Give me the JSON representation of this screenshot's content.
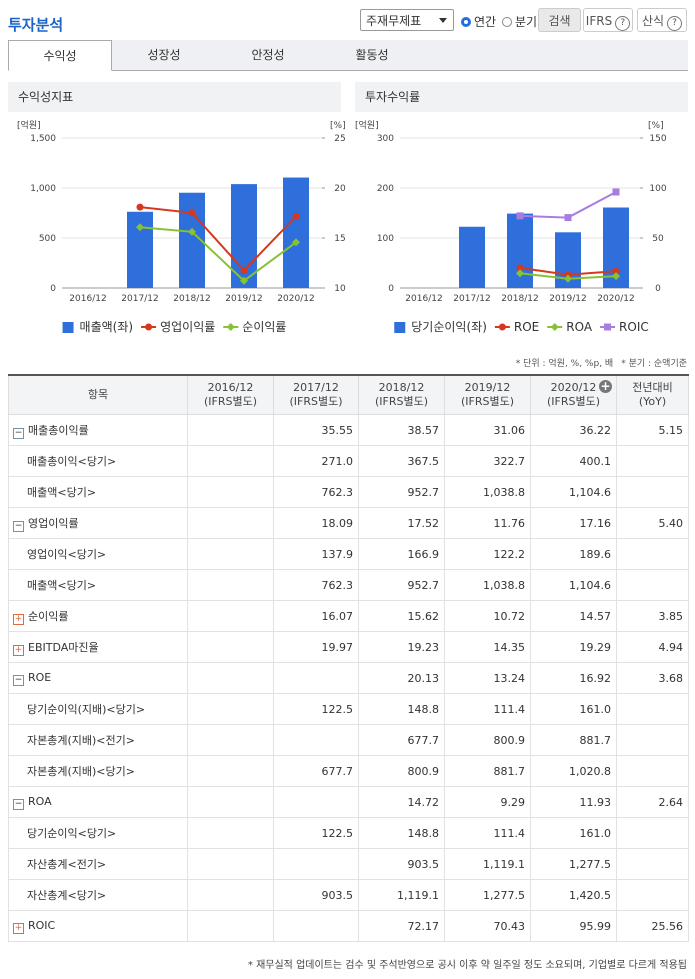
{
  "header": {
    "title": "투자분석",
    "select": "주재무제표",
    "radios": [
      "연간",
      "분기"
    ],
    "radio_selected": 0,
    "buttons": [
      "검색",
      "IFRS",
      "산식"
    ]
  },
  "tabs": {
    "items": [
      "수익성",
      "성장성",
      "안정성",
      "활동성"
    ],
    "active": 0
  },
  "chart_data": [
    {
      "type": "combo",
      "title": "수익성지표",
      "ylabel": "[억원]",
      "y2label": "[%]",
      "categories": [
        "2016/12",
        "2017/12",
        "2018/12",
        "2019/12",
        "2020/12"
      ],
      "series": [
        {
          "name": "매출액(좌)",
          "type": "bar",
          "color": "#2f6fdb",
          "values": [
            null,
            762.3,
            952.7,
            1038.8,
            1104.6
          ]
        },
        {
          "name": "영업이익률",
          "type": "line",
          "axis": "y2",
          "color": "#d5391d",
          "values": [
            null,
            18.09,
            17.52,
            11.76,
            17.16
          ]
        },
        {
          "name": "순이익률",
          "type": "line",
          "axis": "y2",
          "color": "#86c232",
          "values": [
            null,
            16.07,
            15.62,
            10.72,
            14.57
          ]
        }
      ],
      "ylim": [
        0,
        1500
      ],
      "yticks": [
        0,
        500,
        {
          "value": 1000,
          "label": "1,000"
        },
        {
          "value": 1500,
          "label": "1,500"
        }
      ],
      "y2lim": [
        10,
        25
      ],
      "y2ticks": [
        10,
        15,
        20,
        25
      ],
      "grid": true
    },
    {
      "type": "combo",
      "title": "투자수익률",
      "ylabel": "[억원]",
      "y2label": "[%]",
      "categories": [
        "2016/12",
        "2017/12",
        "2018/12",
        "2019/12",
        "2020/12"
      ],
      "series": [
        {
          "name": "당기순이익(좌)",
          "type": "bar",
          "color": "#2f6fdb",
          "values": [
            null,
            122.5,
            148.8,
            111.4,
            161.0
          ]
        },
        {
          "name": "ROE",
          "type": "line",
          "axis": "y2",
          "color": "#d5391d",
          "values": [
            null,
            null,
            20.13,
            13.24,
            16.92
          ]
        },
        {
          "name": "ROA",
          "type": "line",
          "axis": "y2",
          "color": "#86c232",
          "values": [
            null,
            null,
            14.72,
            9.29,
            11.93
          ]
        },
        {
          "name": "ROIC",
          "type": "line",
          "axis": "y2",
          "color": "#a97de0",
          "values": [
            null,
            null,
            72.17,
            70.43,
            95.99
          ]
        }
      ],
      "ylim": [
        0,
        300
      ],
      "yticks": [
        0,
        100,
        200,
        300
      ],
      "y2lim": [
        0,
        150
      ],
      "y2ticks": [
        0,
        50,
        100,
        150
      ],
      "grid": true
    }
  ],
  "note": [
    "* 단위 : 억원, %, %p, 배",
    "* 분기 : 순액기준"
  ],
  "table": {
    "columns": [
      [
        "항목"
      ],
      [
        "2016/12",
        "(IFRS별도)"
      ],
      [
        "2017/12",
        "(IFRS별도)"
      ],
      [
        "2018/12",
        "(IFRS별도)"
      ],
      [
        "2019/12",
        "(IFRS별도)"
      ],
      [
        "2020/12",
        "(IFRS별도)"
      ],
      [
        "전년대비",
        "(YoY)"
      ]
    ],
    "rows": [
      {
        "label": "매출총이익률",
        "expand": "minus",
        "values": [
          null,
          "35.55",
          "38.57",
          "31.06",
          "36.22",
          "5.15"
        ]
      },
      {
        "label": "매출총이익<당기>",
        "values": [
          null,
          "271.0",
          "367.5",
          "322.7",
          "400.1",
          null
        ]
      },
      {
        "label": "매출액<당기>",
        "values": [
          null,
          "762.3",
          "952.7",
          "1,038.8",
          "1,104.6",
          null
        ]
      },
      {
        "label": "영업이익률",
        "expand": "minus",
        "values": [
          null,
          "18.09",
          "17.52",
          "11.76",
          "17.16",
          "5.40"
        ]
      },
      {
        "label": "영업이익<당기>",
        "values": [
          null,
          "137.9",
          "166.9",
          "122.2",
          "189.6",
          null
        ]
      },
      {
        "label": "매출액<당기>",
        "values": [
          null,
          "762.3",
          "952.7",
          "1,038.8",
          "1,104.6",
          null
        ]
      },
      {
        "label": "순이익률",
        "expand": "plus",
        "values": [
          null,
          "16.07",
          "15.62",
          "10.72",
          "14.57",
          "3.85"
        ]
      },
      {
        "label": "EBITDA마진율",
        "expand": "plus",
        "values": [
          null,
          "19.97",
          "19.23",
          "14.35",
          "19.29",
          "4.94"
        ]
      },
      {
        "label": "ROE",
        "expand": "minus",
        "values": [
          null,
          null,
          "20.13",
          "13.24",
          "16.92",
          "3.68"
        ]
      },
      {
        "label": "당기순이익(지배)<당기>",
        "values": [
          null,
          "122.5",
          "148.8",
          "111.4",
          "161.0",
          null
        ]
      },
      {
        "label": "자본총계(지배)<전기>",
        "values": [
          null,
          null,
          "677.7",
          "800.9",
          "881.7",
          null
        ]
      },
      {
        "label": "자본총계(지배)<당기>",
        "values": [
          null,
          "677.7",
          "800.9",
          "881.7",
          "1,020.8",
          null
        ]
      },
      {
        "label": "ROA",
        "expand": "minus",
        "values": [
          null,
          null,
          "14.72",
          "9.29",
          "11.93",
          "2.64"
        ]
      },
      {
        "label": "당기순이익<당기>",
        "values": [
          null,
          "122.5",
          "148.8",
          "111.4",
          "161.0",
          null
        ]
      },
      {
        "label": "자산총계<전기>",
        "values": [
          null,
          null,
          "903.5",
          "1,119.1",
          "1,277.5",
          null
        ]
      },
      {
        "label": "자산총계<당기>",
        "values": [
          null,
          "903.5",
          "1,119.1",
          "1,277.5",
          "1,420.5",
          null
        ]
      },
      {
        "label": "ROIC",
        "expand": "plus",
        "values": [
          null,
          null,
          "72.17",
          "70.43",
          "95.99",
          "25.56"
        ]
      }
    ]
  },
  "footer": "* 재무실적 업데이트는 검수 및 주석반영으로 공시 이후 약 일주일 정도 소요되며, 기업별로 다르게 적용됩"
}
